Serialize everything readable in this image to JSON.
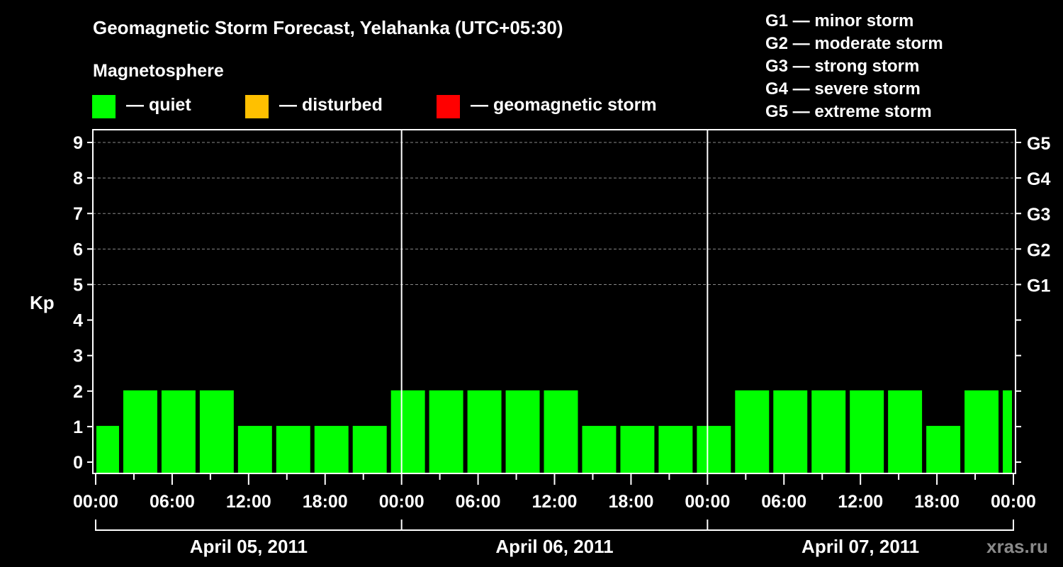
{
  "chart_data": {
    "type": "bar",
    "title": "Geomagnetic Storm Forecast, Yelahanka (UTC+05:30)",
    "subtitle": "Magnetosphere",
    "ylabel": "Kp",
    "ylim": [
      0,
      9
    ],
    "yticks": [
      "0",
      "1",
      "2",
      "3",
      "4",
      "5",
      "6",
      "7",
      "8",
      "9"
    ],
    "right_ticks": [
      {
        "kp": 5,
        "label": "G1"
      },
      {
        "kp": 6,
        "label": "G2"
      },
      {
        "kp": 7,
        "label": "G3"
      },
      {
        "kp": 8,
        "label": "G4"
      },
      {
        "kp": 9,
        "label": "G5"
      }
    ],
    "grid": "dashed horizontal at Kp 5-9",
    "x_range_hours": [
      0,
      72
    ],
    "xticks": [
      "00:00",
      "06:00",
      "12:00",
      "18:00",
      "00:00",
      "06:00",
      "12:00",
      "18:00",
      "00:00",
      "06:00",
      "12:00",
      "18:00",
      "00:00"
    ],
    "days": [
      "April 05, 2011",
      "April 06, 2011",
      "April 07, 2011"
    ],
    "bars": {
      "first_bar_hours": [
        0,
        2
      ],
      "interval_hours": 3,
      "values": [
        1,
        2,
        2,
        2,
        1,
        1,
        1,
        1,
        2,
        2,
        2,
        2,
        2,
        1,
        1,
        1,
        1,
        2,
        2,
        2,
        2,
        2,
        1,
        2,
        2
      ]
    },
    "legend": [
      {
        "label": "— quiet",
        "color": "#00ff00"
      },
      {
        "label": "— disturbed",
        "color": "#ffc000"
      },
      {
        "label": "— geomagnetic storm",
        "color": "#ff0000"
      }
    ],
    "storm_scale": [
      "G1 — minor storm",
      "G2 — moderate storm",
      "G3 — strong storm",
      "G4 — severe storm",
      "G5 — extreme storm"
    ],
    "watermark": "xras.ru"
  }
}
